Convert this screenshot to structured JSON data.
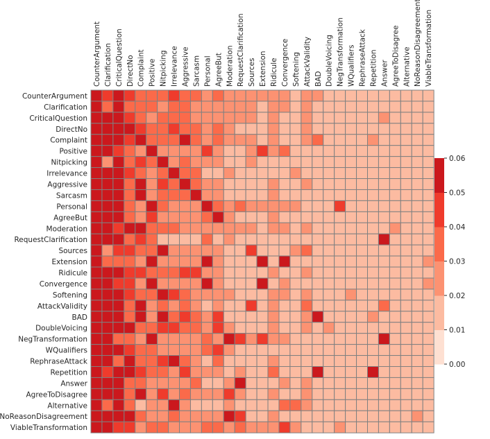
{
  "chart_data": {
    "type": "heatmap",
    "title": "",
    "xlabel": "",
    "ylabel": "",
    "x_axis_position": "top",
    "row_labels": [
      "CounterArgument",
      "Clarification",
      "CriticalQuestion",
      "DirectNo",
      "Complaint",
      "Positive",
      "Nitpicking",
      "Irrelevance",
      "Aggressive",
      "Sarcasm",
      "Personal",
      "AgreeBut",
      "Moderation",
      "RequestClarification",
      "Sources",
      "Extension",
      "Ridicule",
      "Convergence",
      "Softening",
      "AttackValidity",
      "BAD",
      "DoubleVoicing",
      "NegTransformation",
      "WQualifiers",
      "RephraseAttack",
      "Repetition",
      "Answer",
      "AgreeToDisagree",
      "Alternative",
      "NoReasonDisagreement",
      "ViableTransformation"
    ],
    "col_labels": [
      "CounterArgument",
      "Clarification",
      "CriticalQuestion",
      "DirectNo",
      "Complaint",
      "Positive",
      "Nitpicking",
      "Irrelevance",
      "Aggressive",
      "Sarcasm",
      "Personal",
      "AgreeBut",
      "Moderation",
      "RequestClarification",
      "Sources",
      "Extension",
      "Ridicule",
      "Convergence",
      "Softening",
      "AttackValidity",
      "BAD",
      "DoubleVoicing",
      "NegTransformation",
      "WQualifiers",
      "RephraseAttack",
      "Repetition",
      "Answer",
      "AgreeToDisagree",
      "Alternative",
      "NoReasonDisagreement",
      "ViableTransformation"
    ],
    "values": [
      [
        0.06,
        0.045,
        0.06,
        0.04,
        0.035,
        0.03,
        0.03,
        0.04,
        0.035,
        0.03,
        0.025,
        0.03,
        0.025,
        0.02,
        0.02,
        0.02,
        0.02,
        0.02,
        0.015,
        0.025,
        0.02,
        0.01,
        0.015,
        0.015,
        0.015,
        0.015,
        0.015,
        0.01,
        0.01,
        0.01,
        0.01
      ],
      [
        0.06,
        0.03,
        0.06,
        0.035,
        0.03,
        0.03,
        0.02,
        0.03,
        0.03,
        0.025,
        0.02,
        0.025,
        0.02,
        0.02,
        0.02,
        0.015,
        0.02,
        0.02,
        0.015,
        0.025,
        0.015,
        0.01,
        0.015,
        0.015,
        0.015,
        0.015,
        0.015,
        0.01,
        0.01,
        0.01,
        0.01
      ],
      [
        0.06,
        0.06,
        0.06,
        0.04,
        0.035,
        0.02,
        0.03,
        0.035,
        0.03,
        0.025,
        0.02,
        0.025,
        0.02,
        0.02,
        0.02,
        0.015,
        0.02,
        0.015,
        0.015,
        0.02,
        0.015,
        0.01,
        0.015,
        0.015,
        0.015,
        0.015,
        0.02,
        0.01,
        0.01,
        0.01,
        0.01
      ],
      [
        0.06,
        0.06,
        0.06,
        0.06,
        0.04,
        0.03,
        0.035,
        0.04,
        0.035,
        0.03,
        0.02,
        0.03,
        0.02,
        0.015,
        0.015,
        0.01,
        0.02,
        0.015,
        0.015,
        0.02,
        0.015,
        0.01,
        0.015,
        0.015,
        0.015,
        0.015,
        0.015,
        0.01,
        0.01,
        0.01,
        0.01
      ],
      [
        0.06,
        0.06,
        0.06,
        0.045,
        0.055,
        0.03,
        0.035,
        0.035,
        0.05,
        0.03,
        0.02,
        0.03,
        0.02,
        0.02,
        0.02,
        0.015,
        0.02,
        0.015,
        0.015,
        0.025,
        0.035,
        0.01,
        0.015,
        0.015,
        0.015,
        0.02,
        0.015,
        0.01,
        0.01,
        0.01,
        0.01
      ],
      [
        0.06,
        0.06,
        0.04,
        0.035,
        0.02,
        0.06,
        0.025,
        0.025,
        0.02,
        0.02,
        0.04,
        0.02,
        0.01,
        0.01,
        0.02,
        0.04,
        0.02,
        0.03,
        0.01,
        0.01,
        0.015,
        0.01,
        0.015,
        0.01,
        0.01,
        0.01,
        0.01,
        0.01,
        0.01,
        0.01,
        0.01
      ],
      [
        0.06,
        0.025,
        0.06,
        0.035,
        0.04,
        0.03,
        0.06,
        0.025,
        0.03,
        0.02,
        0.02,
        0.02,
        0.015,
        0.015,
        0.02,
        0.01,
        0.015,
        0.015,
        0.015,
        0.015,
        0.015,
        0.01,
        0.01,
        0.01,
        0.01,
        0.01,
        0.01,
        0.01,
        0.01,
        0.01,
        0.01
      ],
      [
        0.06,
        0.06,
        0.06,
        0.04,
        0.035,
        0.02,
        0.03,
        0.055,
        0.03,
        0.03,
        0.015,
        0.015,
        0.02,
        0.015,
        0.015,
        0.01,
        0.015,
        0.015,
        0.02,
        0.015,
        0.015,
        0.01,
        0.015,
        0.01,
        0.015,
        0.015,
        0.01,
        0.01,
        0.01,
        0.01,
        0.01
      ],
      [
        0.06,
        0.06,
        0.06,
        0.035,
        0.06,
        0.025,
        0.04,
        0.03,
        0.06,
        0.03,
        0.02,
        0.025,
        0.015,
        0.015,
        0.015,
        0.01,
        0.02,
        0.015,
        0.015,
        0.025,
        0.015,
        0.01,
        0.015,
        0.015,
        0.015,
        0.015,
        0.015,
        0.01,
        0.01,
        0.01,
        0.01
      ],
      [
        0.06,
        0.06,
        0.06,
        0.035,
        0.05,
        0.025,
        0.035,
        0.03,
        0.03,
        0.055,
        0.02,
        0.02,
        0.015,
        0.015,
        0.015,
        0.01,
        0.02,
        0.015,
        0.015,
        0.015,
        0.015,
        0.01,
        0.01,
        0.01,
        0.01,
        0.01,
        0.01,
        0.01,
        0.01,
        0.01,
        0.01
      ],
      [
        0.06,
        0.06,
        0.06,
        0.035,
        0.025,
        0.055,
        0.03,
        0.025,
        0.025,
        0.025,
        0.055,
        0.03,
        0.02,
        0.03,
        0.02,
        0.02,
        0.025,
        0.025,
        0.02,
        0.015,
        0.015,
        0.015,
        0.04,
        0.015,
        0.015,
        0.015,
        0.01,
        0.01,
        0.01,
        0.01,
        0.01
      ],
      [
        0.06,
        0.06,
        0.05,
        0.035,
        0.025,
        0.04,
        0.025,
        0.025,
        0.025,
        0.025,
        0.03,
        0.055,
        0.02,
        0.01,
        0.015,
        0.01,
        0.02,
        0.015,
        0.015,
        0.01,
        0.015,
        0.01,
        0.01,
        0.01,
        0.01,
        0.01,
        0.01,
        0.01,
        0.01,
        0.01,
        0.01
      ],
      [
        0.06,
        0.06,
        0.045,
        0.05,
        0.06,
        0.03,
        0.03,
        0.03,
        0.025,
        0.025,
        0.025,
        0.02,
        0.025,
        0.02,
        0.02,
        0.01,
        0.02,
        0.02,
        0.015,
        0.02,
        0.015,
        0.01,
        0.015,
        0.015,
        0.01,
        0.015,
        0.01,
        0.02,
        0.01,
        0.01,
        0.01
      ],
      [
        0.06,
        0.055,
        0.06,
        0.03,
        0.04,
        0.035,
        0.015,
        0.015,
        0.015,
        0.015,
        0.03,
        0.015,
        0.02,
        0.01,
        0.015,
        0.01,
        0.01,
        0.015,
        0.015,
        0.015,
        0.015,
        0.01,
        0.015,
        0.01,
        0.01,
        0.01,
        0.06,
        0.01,
        0.01,
        0.01,
        0.01
      ],
      [
        0.06,
        0.025,
        0.045,
        0.04,
        0.035,
        0.03,
        0.06,
        0.025,
        0.02,
        0.02,
        0.02,
        0.02,
        0.015,
        0.015,
        0.045,
        0.01,
        0.015,
        0.015,
        0.02,
        0.035,
        0.015,
        0.01,
        0.015,
        0.01,
        0.01,
        0.01,
        0.01,
        0.01,
        0.01,
        0.01,
        0.01
      ],
      [
        0.06,
        0.03,
        0.03,
        0.035,
        0.025,
        0.06,
        0.025,
        0.025,
        0.02,
        0.02,
        0.06,
        0.02,
        0.015,
        0.015,
        0.015,
        0.06,
        0.015,
        0.05,
        0.015,
        0.01,
        0.01,
        0.01,
        0.015,
        0.01,
        0.01,
        0.01,
        0.01,
        0.01,
        0.01,
        0.01,
        0.02
      ],
      [
        0.06,
        0.06,
        0.06,
        0.045,
        0.04,
        0.03,
        0.035,
        0.03,
        0.045,
        0.04,
        0.02,
        0.02,
        0.015,
        0.015,
        0.015,
        0.01,
        0.02,
        0.015,
        0.015,
        0.02,
        0.015,
        0.01,
        0.015,
        0.015,
        0.015,
        0.015,
        0.015,
        0.01,
        0.01,
        0.01,
        0.01
      ],
      [
        0.06,
        0.06,
        0.045,
        0.04,
        0.025,
        0.06,
        0.02,
        0.025,
        0.02,
        0.02,
        0.06,
        0.02,
        0.015,
        0.015,
        0.015,
        0.06,
        0.015,
        0.025,
        0.015,
        0.01,
        0.01,
        0.01,
        0.015,
        0.01,
        0.01,
        0.01,
        0.01,
        0.01,
        0.01,
        0.01,
        0.02
      ],
      [
        0.06,
        0.06,
        0.06,
        0.04,
        0.03,
        0.03,
        0.05,
        0.045,
        0.03,
        0.025,
        0.02,
        0.025,
        0.02,
        0.015,
        0.015,
        0.01,
        0.02,
        0.02,
        0.015,
        0.02,
        0.015,
        0.01,
        0.015,
        0.02,
        0.015,
        0.015,
        0.015,
        0.01,
        0.01,
        0.01,
        0.01
      ],
      [
        0.06,
        0.06,
        0.06,
        0.035,
        0.05,
        0.02,
        0.03,
        0.025,
        0.035,
        0.02,
        0.015,
        0.02,
        0.015,
        0.015,
        0.045,
        0.01,
        0.02,
        0.015,
        0.015,
        0.035,
        0.015,
        0.01,
        0.015,
        0.015,
        0.015,
        0.015,
        0.035,
        0.01,
        0.01,
        0.01,
        0.01
      ],
      [
        0.06,
        0.06,
        0.06,
        0.035,
        0.06,
        0.025,
        0.05,
        0.03,
        0.04,
        0.03,
        0.02,
        0.04,
        0.015,
        0.015,
        0.015,
        0.01,
        0.02,
        0.015,
        0.015,
        0.02,
        0.06,
        0.01,
        0.015,
        0.015,
        0.015,
        0.02,
        0.015,
        0.01,
        0.01,
        0.01,
        0.01
      ],
      [
        0.06,
        0.06,
        0.055,
        0.05,
        0.035,
        0.03,
        0.04,
        0.04,
        0.035,
        0.035,
        0.02,
        0.04,
        0.02,
        0.015,
        0.015,
        0.01,
        0.02,
        0.015,
        0.015,
        0.02,
        0.015,
        0.02,
        0.015,
        0.015,
        0.015,
        0.015,
        0.015,
        0.01,
        0.01,
        0.01,
        0.01
      ],
      [
        0.06,
        0.06,
        0.035,
        0.035,
        0.025,
        0.06,
        0.025,
        0.02,
        0.02,
        0.02,
        0.035,
        0.025,
        0.05,
        0.04,
        0.025,
        0.04,
        0.02,
        0.025,
        0.015,
        0.015,
        0.015,
        0.015,
        0.015,
        0.015,
        0.015,
        0.01,
        0.06,
        0.01,
        0.01,
        0.01,
        0.01
      ],
      [
        0.06,
        0.06,
        0.06,
        0.04,
        0.03,
        0.035,
        0.025,
        0.025,
        0.025,
        0.025,
        0.035,
        0.04,
        0.02,
        0.015,
        0.015,
        0.01,
        0.015,
        0.015,
        0.015,
        0.015,
        0.015,
        0.01,
        0.015,
        0.015,
        0.015,
        0.015,
        0.015,
        0.01,
        0.01,
        0.01,
        0.01
      ],
      [
        0.06,
        0.06,
        0.035,
        0.055,
        0.035,
        0.03,
        0.04,
        0.05,
        0.03,
        0.025,
        0.015,
        0.03,
        0.015,
        0.015,
        0.015,
        0.01,
        0.02,
        0.015,
        0.015,
        0.015,
        0.015,
        0.01,
        0.015,
        0.015,
        0.015,
        0.015,
        0.015,
        0.01,
        0.01,
        0.01,
        0.01
      ],
      [
        0.06,
        0.04,
        0.06,
        0.05,
        0.04,
        0.03,
        0.03,
        0.025,
        0.045,
        0.025,
        0.02,
        0.02,
        0.015,
        0.02,
        0.015,
        0.01,
        0.03,
        0.015,
        0.015,
        0.015,
        0.05,
        0.01,
        0.015,
        0.015,
        0.015,
        0.06,
        0.015,
        0.01,
        0.01,
        0.01,
        0.01
      ],
      [
        0.06,
        0.055,
        0.06,
        0.035,
        0.035,
        0.02,
        0.02,
        0.02,
        0.02,
        0.035,
        0.015,
        0.015,
        0.02,
        0.06,
        0.015,
        0.01,
        0.015,
        0.02,
        0.015,
        0.02,
        0.015,
        0.01,
        0.015,
        0.01,
        0.015,
        0.015,
        0.015,
        0.01,
        0.01,
        0.015,
        0.01
      ],
      [
        0.06,
        0.06,
        0.06,
        0.035,
        0.06,
        0.025,
        0.045,
        0.025,
        0.03,
        0.025,
        0.02,
        0.025,
        0.04,
        0.02,
        0.015,
        0.01,
        0.02,
        0.015,
        0.015,
        0.025,
        0.015,
        0.01,
        0.015,
        0.015,
        0.015,
        0.015,
        0.015,
        0.01,
        0.01,
        0.01,
        0.01
      ],
      [
        0.06,
        0.035,
        0.055,
        0.035,
        0.01,
        0.02,
        0.02,
        0.06,
        0.025,
        0.015,
        0.015,
        0.015,
        0.02,
        0.015,
        0.015,
        0.01,
        0.015,
        0.03,
        0.03,
        0.02,
        0.015,
        0.01,
        0.015,
        0.015,
        0.015,
        0.015,
        0.01,
        0.01,
        0.01,
        0.01,
        0.01
      ],
      [
        0.06,
        0.06,
        0.06,
        0.06,
        0.03,
        0.025,
        0.02,
        0.03,
        0.025,
        0.02,
        0.02,
        0.02,
        0.055,
        0.04,
        0.015,
        0.01,
        0.02,
        0.015,
        0.015,
        0.015,
        0.015,
        0.01,
        0.015,
        0.015,
        0.015,
        0.015,
        0.01,
        0.015,
        0.01,
        0.02,
        0.01
      ],
      [
        0.06,
        0.055,
        0.045,
        0.045,
        0.02,
        0.03,
        0.03,
        0.025,
        0.025,
        0.025,
        0.03,
        0.03,
        0.025,
        0.03,
        0.02,
        0.02,
        0.02,
        0.045,
        0.02,
        0.015,
        0.015,
        0.015,
        0.02,
        0.015,
        0.015,
        0.015,
        0.015,
        0.01,
        0.015,
        0.015,
        0.01
      ]
    ],
    "vmin": 0.0,
    "vmax": 0.06,
    "colorbar_ticks": [
      "0.00",
      "0.01",
      "0.02",
      "0.03",
      "0.04",
      "0.05",
      "0.06"
    ],
    "colorbar_colors": [
      "#fee0d2",
      "#fcbba1",
      "#fc9272",
      "#fb6a4a",
      "#ef3b2c",
      "#cb181d"
    ],
    "grid_color": "#808080"
  }
}
